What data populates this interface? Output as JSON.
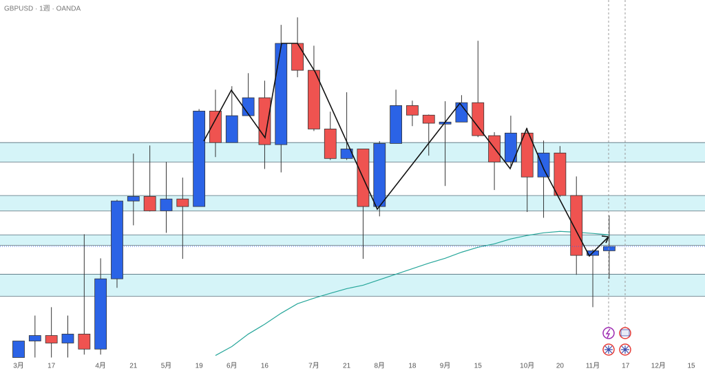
{
  "chart_data": {
    "type": "candlestick",
    "title": "GBPUSD · 1週 · OANDA",
    "categories": [
      "3月",
      null,
      "17",
      null,
      null,
      "4月",
      null,
      "21",
      null,
      "5月",
      null,
      "19",
      null,
      "6月",
      null,
      "16",
      null,
      null,
      "7月",
      null,
      "21",
      null,
      "8月",
      null,
      "18",
      null,
      "9月",
      null,
      "15",
      null,
      null,
      "10月",
      null,
      "20",
      null,
      "11月",
      null,
      "17",
      null,
      "12月",
      null,
      "15"
    ],
    "open": [
      1.2614,
      1.2671,
      1.269,
      1.2664,
      1.2695,
      1.2643,
      1.2886,
      1.3155,
      1.3171,
      1.3121,
      1.3162,
      1.3136,
      1.3466,
      1.3357,
      1.345,
      1.3512,
      1.335,
      1.37,
      1.3607,
      1.3404,
      1.3302,
      1.3335,
      1.3136,
      1.3354,
      1.3485,
      1.3452,
      1.3421,
      1.3428,
      1.3495,
      1.3381,
      1.329,
      1.339,
      1.3238,
      1.3321,
      1.3174,
      1.2967,
      1.2983,
      null,
      null,
      null,
      null,
      null
    ],
    "high": [
      1.2671,
      1.2759,
      1.2788,
      1.2759,
      1.304,
      1.2957,
      1.3159,
      1.3319,
      1.3347,
      1.329,
      1.3236,
      1.3473,
      1.354,
      1.3552,
      1.3597,
      1.3571,
      1.3764,
      1.379,
      1.3692,
      1.3464,
      1.3531,
      1.3335,
      1.3362,
      1.354,
      1.3502,
      1.3454,
      1.35,
      1.3521,
      1.3709,
      1.3393,
      1.345,
      1.3407,
      1.3364,
      1.3345,
      1.324,
      1.2988,
      1.3105,
      null,
      null,
      null,
      null,
      null
    ],
    "low": [
      1.2614,
      1.2614,
      1.2614,
      1.2614,
      1.2624,
      1.2624,
      1.2855,
      1.3071,
      1.3119,
      1.3045,
      1.2955,
      1.3136,
      1.3307,
      1.3357,
      1.345,
      1.3266,
      1.3254,
      1.3583,
      1.3397,
      1.3297,
      1.3297,
      1.2955,
      1.3102,
      1.3354,
      1.3414,
      1.3312,
      1.3207,
      1.3428,
      1.3376,
      1.3193,
      1.3271,
      1.3117,
      1.3097,
      1.3169,
      1.29,
      1.2788,
      1.2886,
      null,
      null,
      null,
      null,
      null
    ],
    "close": [
      1.2671,
      1.269,
      1.2664,
      1.2695,
      1.2643,
      1.2886,
      1.3155,
      1.3171,
      1.3121,
      1.3162,
      1.3136,
      1.3466,
      1.3357,
      1.345,
      1.3512,
      1.335,
      1.37,
      1.3607,
      1.3404,
      1.3302,
      1.3335,
      1.3136,
      1.3354,
      1.3485,
      1.3452,
      1.3424,
      1.3428,
      1.3495,
      1.3381,
      1.329,
      1.339,
      1.3238,
      1.3321,
      1.3174,
      1.2967,
      1.2983,
      1.2998,
      null,
      null,
      null,
      null,
      null
    ],
    "up_color": "#2b63e6",
    "down_color": "#ef5350",
    "moving_average": {
      "color": "#26a69a",
      "values": [
        null,
        null,
        null,
        null,
        null,
        null,
        null,
        null,
        null,
        null,
        null,
        null,
        1.2621,
        1.2652,
        1.2695,
        1.2729,
        1.2767,
        1.28,
        1.2819,
        1.2836,
        1.2852,
        1.2864,
        1.2883,
        1.2902,
        1.2921,
        1.294,
        1.2957,
        1.2978,
        1.2995,
        1.3007,
        1.3024,
        1.3036,
        1.3045,
        1.305,
        1.3047,
        1.3043,
        1.3038,
        null,
        null,
        null,
        null,
        null
      ]
    },
    "zones": [
      [
        1.329,
        1.3357
      ],
      [
        1.3121,
        1.3174
      ],
      [
        1.3002,
        1.3038
      ],
      [
        1.2826,
        1.2902
      ]
    ],
    "zone_color": "#b2ebf2",
    "ylim": [
      1.2608,
      1.385
    ]
  }
}
